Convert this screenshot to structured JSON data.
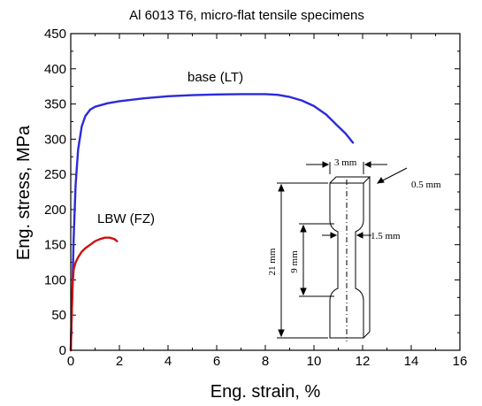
{
  "chart_data": {
    "type": "line",
    "title": "Al 6013 T6, micro-flat tensile specimens",
    "xlabel": "Eng. strain, %",
    "ylabel": "Eng. stress, MPa",
    "xlim": [
      0,
      16
    ],
    "ylim": [
      0,
      450
    ],
    "xticks": [
      0,
      2,
      4,
      6,
      8,
      10,
      12,
      14,
      16
    ],
    "yticks": [
      0,
      50,
      100,
      150,
      200,
      250,
      300,
      350,
      400,
      450
    ],
    "grid": false,
    "series": [
      {
        "name": "base (LT)",
        "color": "#2b2bd9",
        "x": [
          0,
          0.06,
          0.12,
          0.2,
          0.3,
          0.45,
          0.6,
          0.8,
          1.0,
          1.5,
          2,
          3,
          4,
          5,
          6,
          7,
          8,
          8.5,
          9,
          9.5,
          10,
          10.5,
          11,
          11.3,
          11.6
        ],
        "y": [
          0,
          80,
          160,
          235,
          285,
          318,
          333,
          342,
          346,
          351,
          354,
          358,
          361,
          362.5,
          363.5,
          364,
          364,
          363,
          360,
          355,
          347,
          335,
          318,
          308,
          295
        ]
      },
      {
        "name": "LBW (FZ)",
        "color": "#cc1111",
        "x": [
          0,
          0.04,
          0.08,
          0.12,
          0.2,
          0.3,
          0.45,
          0.6,
          0.8,
          1.0,
          1.2,
          1.4,
          1.6,
          1.8,
          1.9
        ],
        "y": [
          0,
          50,
          95,
          115,
          125,
          132,
          140,
          145,
          150,
          155,
          158,
          160,
          160,
          158,
          155
        ]
      }
    ],
    "annotations": {
      "base_label": "base (LT)",
      "lbw_label": "LBW (FZ)",
      "specimen": {
        "width": "3 mm",
        "thickness": "0.5 mm",
        "gauge_width": "1.5 mm",
        "total_length": "21 mm",
        "gauge_length": "9 mm"
      }
    }
  }
}
